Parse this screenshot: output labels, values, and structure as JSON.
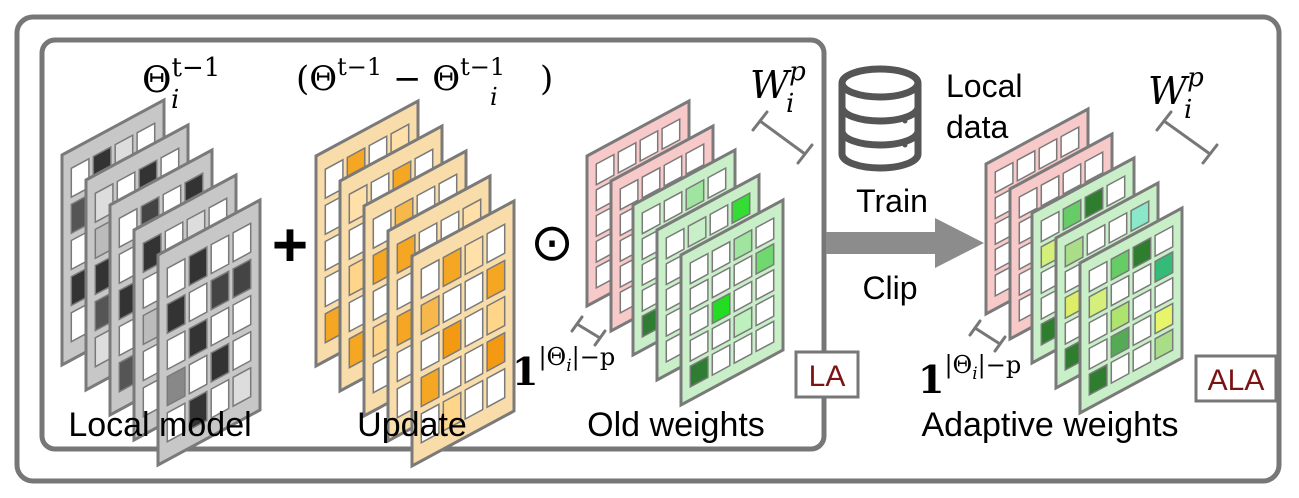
{
  "labels": {
    "local_model": "Local model",
    "update": "Update",
    "old_weights": "Old weights",
    "adaptive_weights": "Adaptive weights",
    "local_data_line1": "Local",
    "local_data_line2": "data",
    "train": "Train",
    "clip": "Clip"
  },
  "badges": {
    "la": "LA",
    "ala": "ALA"
  },
  "operators": {
    "plus": "+",
    "hadamard": "⊙"
  },
  "math": {
    "theta_prev": {
      "base": "Θ",
      "sub": "i",
      "sup": "t−1"
    },
    "update_expr": {
      "open": "(Θ",
      "sup1": "t−1",
      "minus": " − Θ",
      "sub2": "i",
      "sup2": "t−1",
      "close": ")"
    },
    "w_left": {
      "base": "W",
      "sub": "i",
      "sup": "p"
    },
    "w_right": {
      "base": "W",
      "sub": "i",
      "sup": "p"
    },
    "ones_left": {
      "base": "1",
      "sup": "|Θ",
      "sup_sub": "i",
      "sup_tail": "|−p"
    },
    "ones_right": {
      "base": "1",
      "sup": "|Θ",
      "sup_sub": "i",
      "sup_tail": "|−p"
    }
  },
  "colors": {
    "frame": "#777777",
    "gray_fill": "#c7c7c7",
    "orange_fill": "#f8dcaa",
    "pink_fill": "#f7c9c9",
    "green_fill": "#c9efc9",
    "badge_text": "#7a1414",
    "arrow": "#8c8c8c"
  },
  "icons": {
    "database": "database-icon",
    "arrow": "right-arrow-icon"
  }
}
